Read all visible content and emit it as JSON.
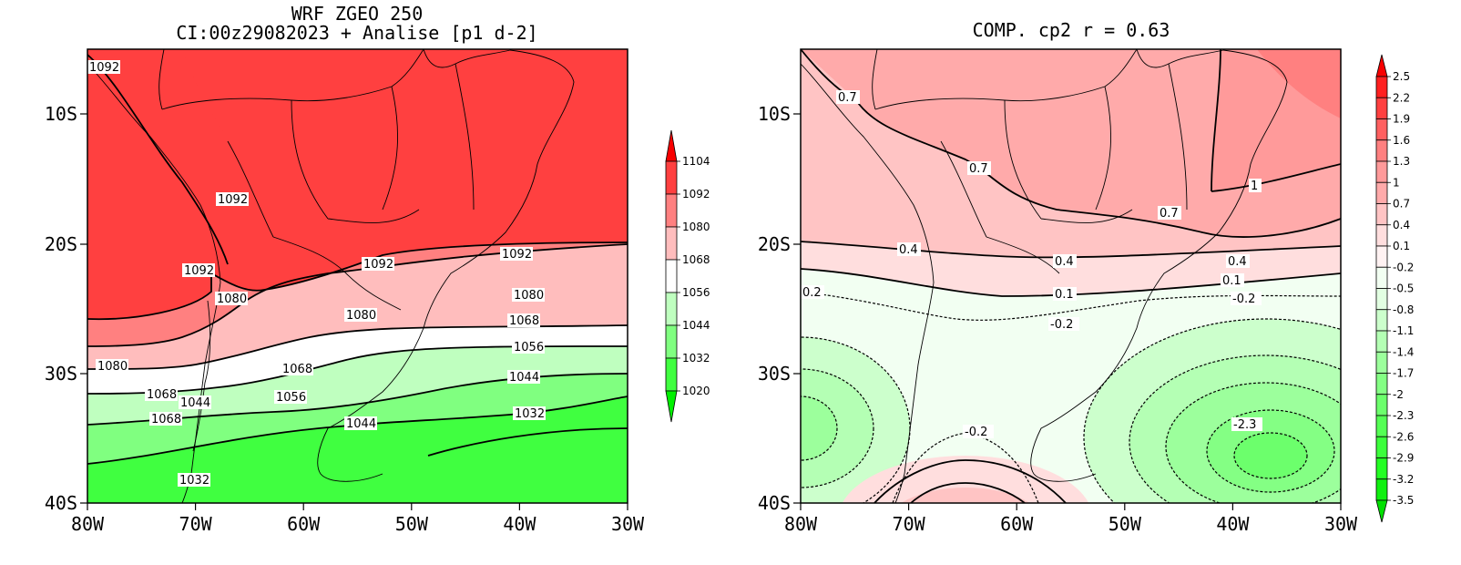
{
  "left": {
    "title_line1": "WRF ZGEO 250",
    "title_line2": "CI:00z29082023 + Analise  [p1 d-2]",
    "x_ticks": [
      "80W",
      "70W",
      "60W",
      "50W",
      "40W",
      "30W"
    ],
    "y_ticks": [
      "10S",
      "20S",
      "30S",
      "40S"
    ],
    "contour_labels": [
      "1092",
      "1092",
      "1092",
      "1092",
      "1092",
      "1080",
      "1080",
      "1080",
      "1080",
      "1068",
      "1068",
      "1068",
      "1056",
      "1056",
      "1044",
      "1044",
      "1044",
      "1032",
      "1032"
    ],
    "colorbar": {
      "labels": [
        "1104",
        "1092",
        "1080",
        "1068",
        "1056",
        "1044",
        "1032",
        "1020"
      ],
      "colors": [
        "#f80000",
        "#ff4040",
        "#ff8080",
        "#ffbdbd",
        "#ffffff",
        "#bfffbf",
        "#80ff80",
        "#40ff40",
        "#00f000"
      ]
    }
  },
  "right": {
    "title": "COMP. cp2  r =  0.63",
    "x_ticks": [
      "80W",
      "70W",
      "60W",
      "50W",
      "40W",
      "30W"
    ],
    "y_ticks": [
      "10S",
      "20S",
      "30S",
      "40S"
    ],
    "contour_labels": [
      "0.7",
      "0.7",
      "0.7",
      "1",
      "0.4",
      "0.4",
      "0.4",
      "0.1",
      "0.1",
      "0.2",
      "-0.2",
      "-0.2",
      "-0.2",
      "-0.2",
      "-2.3"
    ],
    "colorbar": {
      "labels": [
        "2.5",
        "2.2",
        "1.9",
        "1.6",
        "1.3",
        "1",
        "0.7",
        "0.4",
        "0.1",
        "-0.2",
        "-0.5",
        "-0.8",
        "-1.1",
        "-1.4",
        "-1.7",
        "-2",
        "-2.3",
        "-2.6",
        "-2.9",
        "-3.2",
        "-3.5"
      ],
      "colors": [
        "#f80000",
        "#ff2020",
        "#ff4040",
        "#ff6060",
        "#ff8080",
        "#ff9a9a",
        "#ffaaaa",
        "#ffc4c4",
        "#ffdede",
        "#fff2f2",
        "#f2fff2",
        "#e2ffe2",
        "#ccffcc",
        "#b4ffb4",
        "#9cff9c",
        "#84ff84",
        "#6cff6c",
        "#54ff54",
        "#3cff3c",
        "#24ff24",
        "#10f010",
        "#00e000"
      ]
    }
  }
}
